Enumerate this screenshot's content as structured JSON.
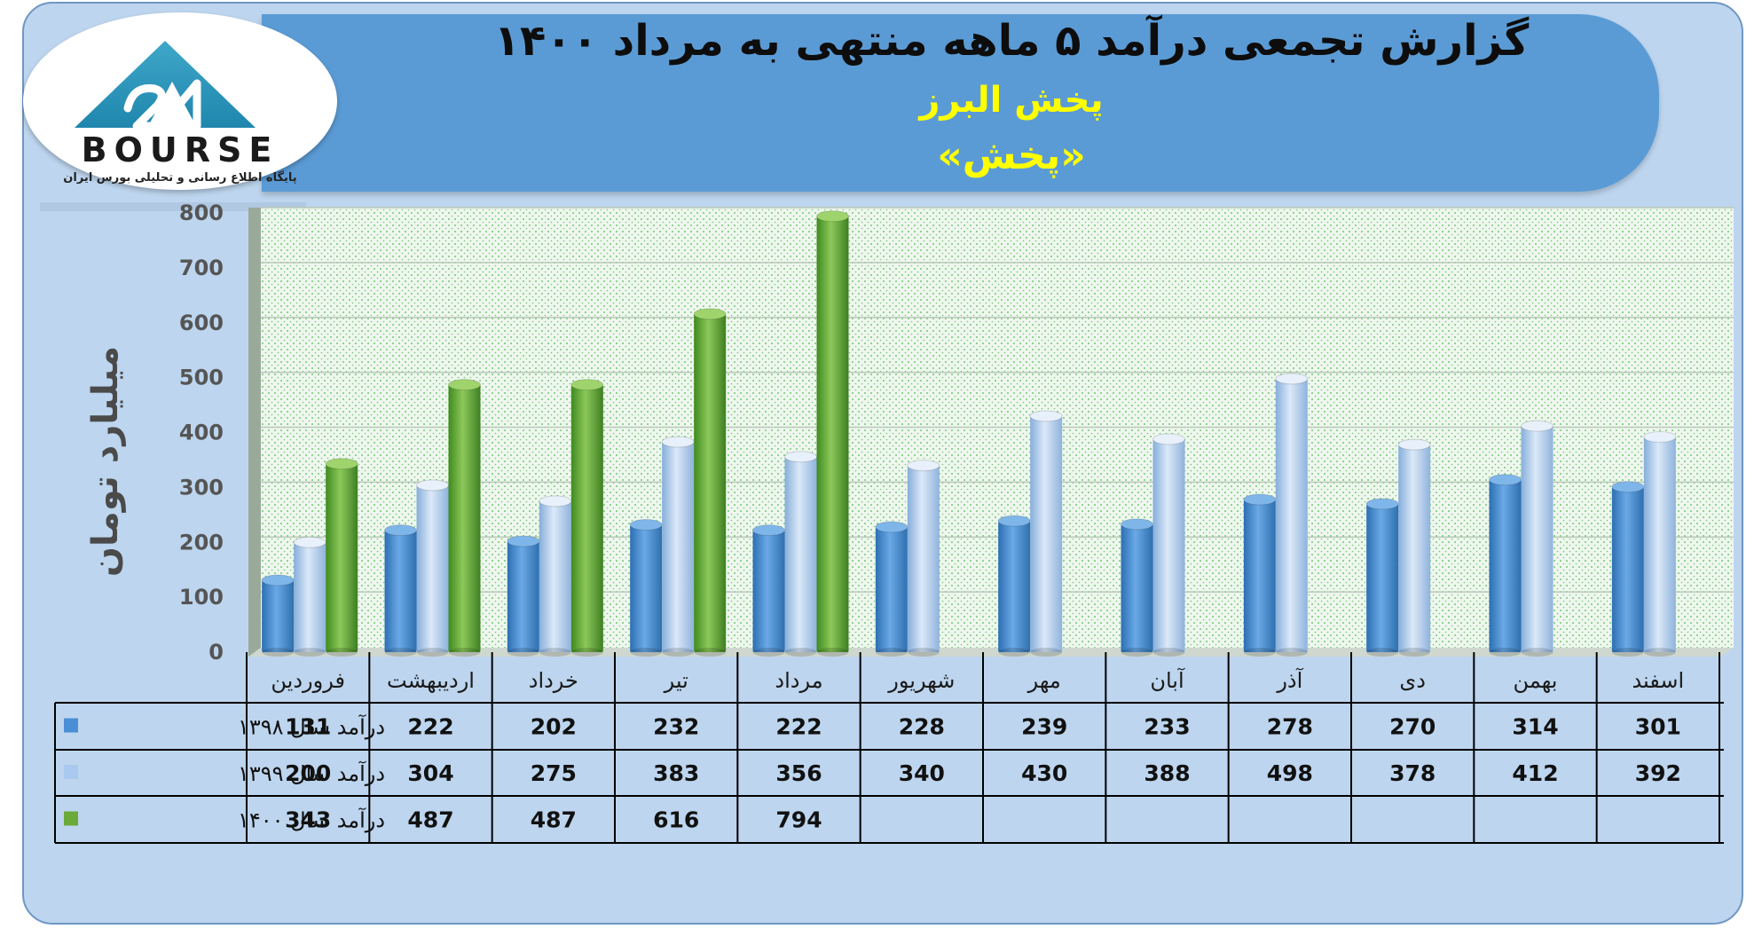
{
  "header": {
    "title": "گزارش تجمعی درآمد ۵ ماهه منتهی به مرداد ۱۴۰۰",
    "subtitle_company": "پخش البرز",
    "subtitle_symbol": "«پخش»"
  },
  "logo": {
    "wordmark": "BOURSE",
    "tagline": "پایگاه اطلاع رسانی و تحلیلی بورس ایران"
  },
  "colors": {
    "series_1398": "#4a8fd6",
    "series_1399": "#a9c9ef",
    "series_1400": "#6aaa3a",
    "banner": "#5b9bd5",
    "background": "#bdd5ee",
    "title_highlight": "#ffff00"
  },
  "chart_data": {
    "type": "bar",
    "ylabel": "میلیارد تومان",
    "ylim": [
      0,
      800
    ],
    "yticks": [
      0,
      100,
      200,
      300,
      400,
      500,
      600,
      700,
      800
    ],
    "grid": true,
    "categories": [
      "فروردین",
      "اردیبهشت",
      "خرداد",
      "تیر",
      "مرداد",
      "شهریور",
      "مهر",
      "آبان",
      "آذر",
      "دی",
      "بهمن",
      "اسفند"
    ],
    "series": [
      {
        "name": "درآمد سال ۱۳۹۸",
        "color": "#4a8fd6",
        "values": [
          131,
          222,
          202,
          232,
          222,
          228,
          239,
          233,
          278,
          270,
          314,
          301
        ]
      },
      {
        "name": "درآمد سال ۱۳۹۹",
        "color": "#a9c9ef",
        "values": [
          200,
          304,
          275,
          383,
          356,
          340,
          430,
          388,
          498,
          378,
          412,
          392
        ]
      },
      {
        "name": "درآمد سال ۱۴۰۰",
        "color": "#6aaa3a",
        "values": [
          343,
          487,
          487,
          616,
          794,
          null,
          null,
          null,
          null,
          null,
          null,
          null
        ]
      }
    ],
    "data_table": true
  }
}
